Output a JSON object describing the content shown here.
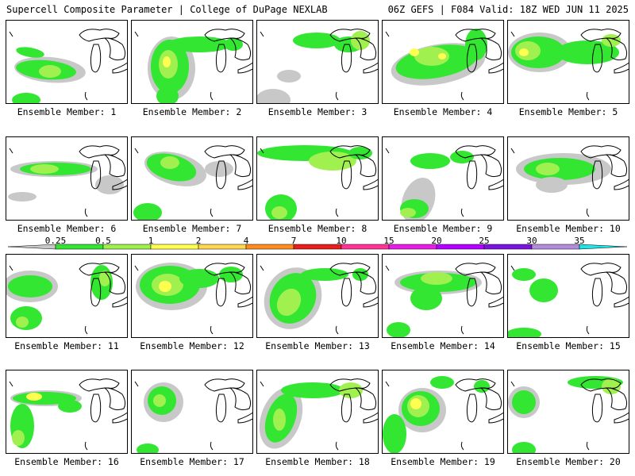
{
  "header": {
    "title_left": "Supercell Composite Parameter | College of DuPage NEXLAB",
    "title_right": "06Z GEFS | F084 Valid: 18Z WED JUN 11 2025"
  },
  "panel_label_prefix": "Ensemble Member:",
  "members": [
    "1",
    "2",
    "3",
    "4",
    "5",
    "6",
    "7",
    "8",
    "9",
    "10",
    "11",
    "12",
    "13",
    "14",
    "15",
    "16",
    "17",
    "18",
    "19",
    "20"
  ],
  "colorbar": {
    "levels": [
      "0.25",
      "0.5",
      "1",
      "2",
      "4",
      "7",
      "10",
      "15",
      "20",
      "25",
      "30",
      "35"
    ],
    "colors": [
      "#c8c8c8",
      "#32e632",
      "#a0f050",
      "#ffff50",
      "#ffd750",
      "#ff8c1e",
      "#e61e1e",
      "#ff3296",
      "#e61ee6",
      "#b400ff",
      "#7814dc",
      "#b48cdc",
      "#1ee6e6"
    ]
  }
}
